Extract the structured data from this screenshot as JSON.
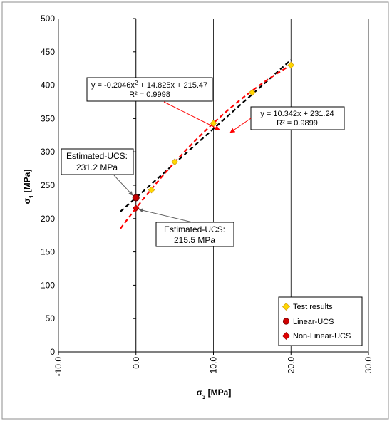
{
  "chart_data": {
    "type": "scatter",
    "x_axis": {
      "label_main": "σ",
      "label_sub": "3",
      "label_unit": " [MPa]",
      "range": [
        -10,
        30
      ],
      "ticks": [
        -10,
        0,
        10,
        20,
        30
      ],
      "tick_labels": [
        "-10.0",
        "0.0",
        "10.0",
        "20.0",
        "30.0"
      ],
      "tick_label_rotation": "vertical"
    },
    "y_axis": {
      "label_main": "σ",
      "label_sub": "1",
      "label_unit": " [MPa]",
      "range": [
        0,
        500
      ],
      "ticks": [
        0,
        50,
        100,
        150,
        200,
        250,
        300,
        350,
        400,
        450,
        500
      ],
      "tick_labels": [
        "0",
        "50",
        "100",
        "150",
        "200",
        "250",
        "300",
        "350",
        "400",
        "450",
        "500"
      ]
    },
    "grid": "vertical-major",
    "series": [
      {
        "name": "Test results",
        "marker": "diamond",
        "color": "#FFD700",
        "edge_color": "#D4A017",
        "points": [
          [
            2,
            243
          ],
          [
            5,
            285
          ],
          [
            10,
            343
          ],
          [
            15,
            389
          ],
          [
            20,
            430
          ]
        ]
      },
      {
        "name": "Linear-UCS",
        "marker": "circle",
        "color": "#C00000",
        "points": [
          [
            0,
            231.2
          ]
        ]
      },
      {
        "name": "Non-Linear-UCS",
        "marker": "diamond",
        "color": "#E00000",
        "points": [
          [
            0,
            215.5
          ]
        ]
      }
    ],
    "fits": [
      {
        "kind": "linear",
        "color": "#000000",
        "dash": "dashed",
        "coefficients": {
          "slope": 10.342,
          "intercept": 231.24
        },
        "x_range": [
          -2,
          20
        ],
        "equation": "y = 10.342x + 231.24",
        "r2": "R² = 0.9899"
      },
      {
        "kind": "polynomial",
        "color": "#FF0000",
        "dash": "dashed",
        "coefficients": {
          "a": -0.2046,
          "b": 14.825,
          "c": 215.47
        },
        "x_range": [
          -2,
          20
        ],
        "equation_prefix": "y = -0.2046x",
        "equation_sup": "2",
        "equation_suffix": " + 14.825x + 215.47",
        "r2": "R² = 0.9998"
      }
    ],
    "annotations": [
      {
        "line1": "Estimated-UCS:",
        "line2": "231.2 MPa"
      },
      {
        "line1": "Estimated-UCS:",
        "line2": "215.5 MPa"
      }
    ],
    "legend": {
      "position": "bottom-right",
      "entries": [
        "Test results",
        "Linear-UCS",
        "Non-Linear-UCS"
      ]
    }
  }
}
